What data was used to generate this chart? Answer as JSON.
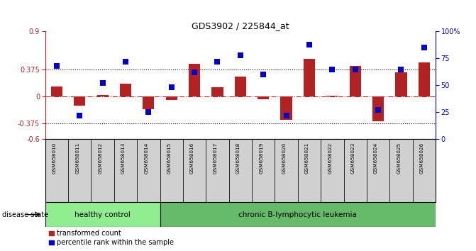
{
  "title": "GDS3902 / 225844_at",
  "samples": [
    "GSM658010",
    "GSM658011",
    "GSM658012",
    "GSM658013",
    "GSM658014",
    "GSM658015",
    "GSM658016",
    "GSM658017",
    "GSM658018",
    "GSM658019",
    "GSM658020",
    "GSM658021",
    "GSM658022",
    "GSM658023",
    "GSM658024",
    "GSM658025",
    "GSM658026"
  ],
  "red_bars": [
    0.13,
    -0.13,
    0.02,
    0.17,
    -0.18,
    -0.05,
    0.45,
    0.12,
    0.27,
    -0.04,
    -0.33,
    0.52,
    0.01,
    0.42,
    -0.35,
    0.33,
    0.47
  ],
  "blue_pcts": [
    68,
    22,
    52,
    72,
    25,
    48,
    62,
    72,
    78,
    60,
    22,
    88,
    65,
    65,
    27,
    65,
    85
  ],
  "ylim_left": [
    -0.6,
    0.9
  ],
  "ylim_right": [
    0,
    100
  ],
  "yticks_left": [
    -0.6,
    -0.375,
    0.0,
    0.375,
    0.9
  ],
  "yticks_right": [
    0,
    25,
    50,
    75,
    100
  ],
  "hline_vals": [
    0.375,
    -0.375
  ],
  "zero_line": 0.0,
  "healthy_count": 5,
  "group1_label": "healthy control",
  "group2_label": "chronic B-lymphocytic leukemia",
  "disease_state_label": "disease state",
  "legend_red": "transformed count",
  "legend_blue": "percentile rank within the sample",
  "bar_color": "#B22222",
  "dot_color": "#0000CD",
  "bar_width": 0.5,
  "dot_size": 28,
  "tick_bg": "#D0D0D0",
  "group_bg_healthy": "#90EE90",
  "group_bg_leukemia": "#66BB6A"
}
